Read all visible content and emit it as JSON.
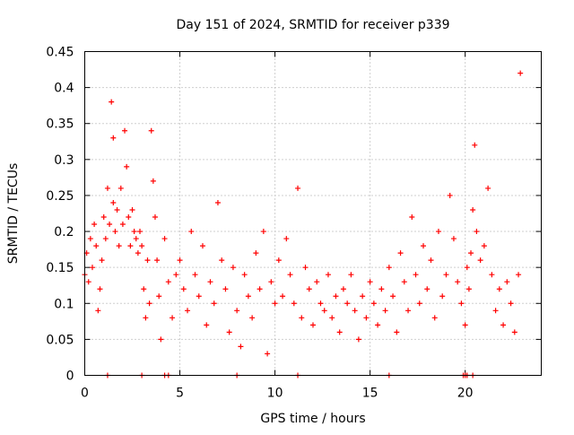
{
  "chart_data": {
    "type": "scatter",
    "title": "Day 151 of 2024, SRMTID for receiver p339",
    "xlabel": "GPS time / hours",
    "ylabel": "SRMTID / TECUs",
    "xlim": [
      0,
      24
    ],
    "ylim": [
      0,
      0.45
    ],
    "x_ticks": [
      0,
      5,
      10,
      15,
      20
    ],
    "x_tick_labels": [
      "0",
      "5",
      "10",
      "15",
      "20"
    ],
    "y_ticks": [
      0,
      0.05,
      0.1,
      0.15,
      0.2,
      0.25,
      0.3,
      0.35,
      0.4,
      0.45
    ],
    "y_tick_labels": [
      "0",
      "0.05",
      "0.1",
      "0.15",
      "0.2",
      "0.25",
      "0.3",
      "0.35",
      "0.4",
      "0.45"
    ],
    "grid": true,
    "marker": "plus",
    "series_color": "#ff0000",
    "series": [
      {
        "name": "SRMTID",
        "x": [
          0.0,
          0.1,
          0.2,
          0.3,
          0.4,
          0.5,
          0.6,
          0.7,
          0.8,
          0.9,
          1.0,
          1.1,
          1.2,
          1.3,
          1.4,
          1.5,
          1.5,
          1.6,
          1.7,
          1.8,
          1.9,
          2.0,
          2.1,
          2.2,
          2.3,
          2.4,
          2.5,
          2.6,
          2.7,
          2.8,
          2.9,
          3.0,
          3.1,
          3.2,
          3.3,
          3.4,
          3.5,
          3.6,
          3.7,
          3.8,
          3.9,
          4.0,
          4.2,
          4.4,
          4.6,
          4.8,
          5.0,
          5.2,
          5.4,
          5.6,
          5.8,
          6.0,
          6.2,
          6.4,
          6.6,
          6.8,
          7.0,
          7.2,
          7.4,
          7.6,
          7.8,
          8.0,
          8.2,
          8.4,
          8.6,
          8.8,
          9.0,
          9.2,
          9.4,
          9.6,
          9.8,
          10.0,
          10.2,
          10.4,
          10.6,
          10.8,
          11.0,
          11.2,
          11.4,
          11.6,
          11.8,
          12.0,
          12.2,
          12.4,
          12.6,
          12.8,
          13.0,
          13.2,
          13.4,
          13.6,
          13.8,
          14.0,
          14.2,
          14.4,
          14.6,
          14.8,
          15.0,
          15.2,
          15.4,
          15.6,
          15.8,
          16.0,
          16.2,
          16.4,
          16.6,
          16.8,
          17.0,
          17.2,
          17.4,
          17.6,
          17.8,
          18.0,
          18.2,
          18.4,
          18.6,
          18.8,
          19.0,
          19.2,
          19.4,
          19.6,
          19.8,
          20.0,
          20.1,
          20.2,
          20.3,
          20.4,
          20.5,
          20.6,
          20.8,
          21.0,
          21.2,
          21.4,
          21.6,
          21.8,
          22.0,
          22.2,
          22.4,
          22.6,
          22.8,
          22.9
        ],
        "y": [
          0.14,
          0.17,
          0.13,
          0.19,
          0.15,
          0.21,
          0.18,
          0.09,
          0.12,
          0.16,
          0.22,
          0.19,
          0.26,
          0.21,
          0.38,
          0.33,
          0.24,
          0.2,
          0.23,
          0.18,
          0.26,
          0.21,
          0.34,
          0.29,
          0.22,
          0.18,
          0.23,
          0.2,
          0.19,
          0.17,
          0.2,
          0.18,
          0.12,
          0.08,
          0.16,
          0.1,
          0.34,
          0.27,
          0.22,
          0.16,
          0.11,
          0.05,
          0.19,
          0.13,
          0.08,
          0.14,
          0.16,
          0.12,
          0.09,
          0.2,
          0.14,
          0.11,
          0.18,
          0.07,
          0.13,
          0.1,
          0.24,
          0.16,
          0.12,
          0.06,
          0.15,
          0.09,
          0.04,
          0.14,
          0.11,
          0.08,
          0.17,
          0.12,
          0.2,
          0.03,
          0.13,
          0.1,
          0.16,
          0.11,
          0.19,
          0.14,
          0.1,
          0.26,
          0.08,
          0.15,
          0.12,
          0.07,
          0.13,
          0.1,
          0.09,
          0.14,
          0.08,
          0.11,
          0.06,
          0.12,
          0.1,
          0.14,
          0.09,
          0.05,
          0.11,
          0.08,
          0.13,
          0.1,
          0.07,
          0.12,
          0.09,
          0.15,
          0.11,
          0.06,
          0.17,
          0.13,
          0.09,
          0.22,
          0.14,
          0.1,
          0.18,
          0.12,
          0.16,
          0.08,
          0.2,
          0.11,
          0.14,
          0.25,
          0.19,
          0.13,
          0.1,
          0.07,
          0.15,
          0.12,
          0.17,
          0.23,
          0.32,
          0.2,
          0.16,
          0.18,
          0.26,
          0.14,
          0.09,
          0.12,
          0.07,
          0.13,
          0.1,
          0.06,
          0.14,
          0.42
        ],
        "zero_x": [
          1.2,
          3.0,
          4.2,
          4.4,
          8.0,
          11.2,
          16.0,
          19.9,
          20.0,
          20.1,
          20.4
        ]
      }
    ]
  }
}
